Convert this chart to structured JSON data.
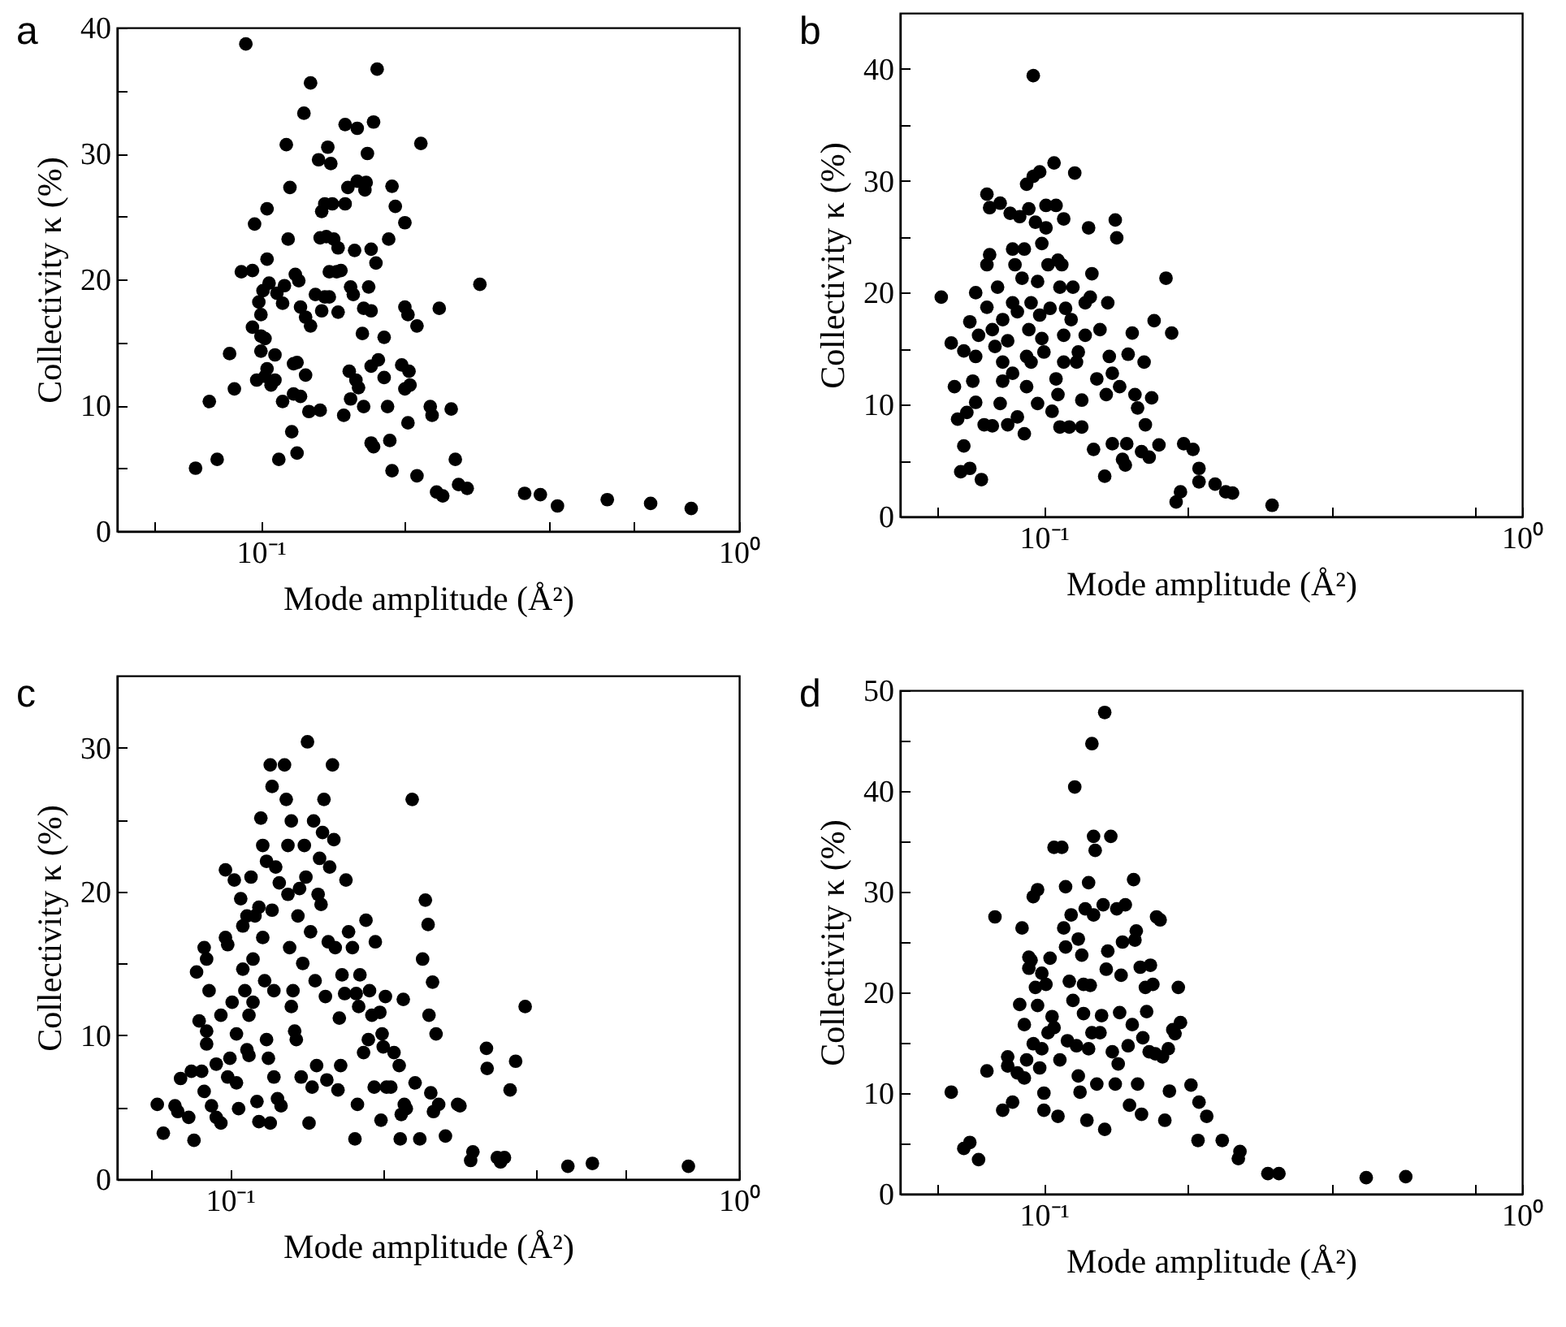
{
  "chart_data": [
    {
      "type": "scatter",
      "title": "a",
      "xlabel": "Mode amplitude (Å²)",
      "ylabel": "Collectivity κ (%)",
      "log": "x",
      "marker": "circle",
      "color": "#000000",
      "xlim": [
        0.05,
        1
      ],
      "ylim": [
        0,
        40
      ],
      "xticks": [
        {
          "value": 0.06,
          "label": null
        },
        {
          "value": 0.1,
          "label": "10⁻¹"
        },
        {
          "value": 0.2,
          "label": null
        },
        {
          "value": 0.4,
          "label": null
        },
        {
          "value": 0.6,
          "label": null
        },
        {
          "value": 1,
          "label": "10⁰"
        }
      ],
      "yticks": [
        0,
        {
          "value": 5,
          "label": null
        },
        10,
        {
          "value": 15,
          "label": null
        },
        20,
        {
          "value": 25,
          "label": null
        },
        30,
        {
          "value": 35,
          "label": null
        },
        40
      ],
      "x": [
        0.073,
        0.078,
        0.081,
        0.086,
        0.088,
        0.093,
        0.097,
        0.091,
        0.096,
        0.096,
        0.099,
        0.1,
        0.101,
        0.1,
        0.102,
        0.1,
        0.098,
        0.103,
        0.102,
        0.105,
        0.107,
        0.107,
        0.103,
        0.103,
        0.104,
        0.108,
        0.111,
        0.111,
        0.109,
        0.113,
        0.114,
        0.112,
        0.115,
        0.116,
        0.117,
        0.119,
        0.117,
        0.121,
        0.119,
        0.118,
        0.12,
        0.123,
        0.127,
        0.121,
        0.124,
        0.127,
        0.124,
        0.126,
        0.133,
        0.13,
        0.134,
        0.136,
        0.139,
        0.132,
        0.138,
        0.14,
        0.134,
        0.136,
        0.141,
        0.133,
        0.137,
        0.142,
        0.145,
        0.139,
        0.144,
        0.147,
        0.145,
        0.15,
        0.159,
        0.152,
        0.159,
        0.166,
        0.165,
        0.15,
        0.157,
        0.154,
        0.156,
        0.153,
        0.158,
        0.16,
        0.154,
        0.149,
        0.164,
        0.163,
        0.164,
        0.17,
        0.167,
        0.172,
        0.175,
        0.17,
        0.174,
        0.168,
        0.17,
        0.176,
        0.17,
        0.172,
        0.181,
        0.181,
        0.184,
        0.186,
        0.188,
        0.188,
        0.191,
        0.185,
        0.2,
        0.197,
        0.204,
        0.2,
        0.205,
        0.2,
        0.203,
        0.212,
        0.203,
        0.212,
        0.216,
        0.236,
        0.226,
        0.228,
        0.25,
        0.255,
        0.259,
        0.27,
        0.233,
        0.24,
        0.287,
        0.356,
        0.384,
        0.417,
        0.53,
        0.653,
        0.794
      ],
      "values": [
        5.0,
        10.3,
        5.7,
        14.1,
        11.3,
        38.7,
        24.4,
        20.6,
        20.7,
        16.2,
        18.2,
        17.2,
        19.1,
        15.5,
        15.3,
        14.3,
        12.0,
        12.9,
        12.3,
        11.6,
        12.0,
        14.0,
        25.6,
        21.6,
        19.7,
        18.9,
        18.1,
        10.3,
        5.7,
        30.7,
        23.2,
        19.5,
        27.3,
        7.9,
        13.3,
        13.4,
        10.9,
        10.7,
        6.2,
        20.4,
        19.9,
        33.2,
        35.6,
        17.8,
        17.0,
        16.3,
        12.4,
        9.5,
        9.6,
        18.8,
        17.5,
        18.6,
        18.6,
        29.5,
        30.5,
        29.2,
        25.4,
        26.0,
        26.0,
        23.3,
        23.4,
        23.2,
        22.5,
        20.6,
        20.6,
        20.7,
        17.4,
        32.3,
        32.0,
        27.3,
        27.8,
        27.7,
        27.1,
        26.0,
        22.3,
        19.4,
        18.8,
        12.7,
        12.0,
        11.4,
        10.5,
        9.2,
        9.9,
        15.7,
        17.7,
        17.5,
        30.0,
        32.5,
        36.7,
        22.4,
        21.3,
        19.4,
        13.1,
        13.6,
        7.0,
        6.7,
        15.4,
        12.2,
        9.9,
        7.2,
        4.8,
        27.4,
        25.8,
        23.2,
        24.5,
        13.2,
        12.7,
        11.3,
        11.6,
        17.8,
        17.2,
        16.3,
        8.6,
        4.4,
        30.8,
        17.7,
        9.9,
        9.2,
        9.7,
        5.7,
        3.7,
        3.4,
        3.1,
        2.8,
        19.6,
        3.0,
        2.9,
        2.0,
        2.5,
        2.2,
        1.8
      ]
    },
    {
      "type": "scatter",
      "title": "b",
      "xlabel": "Mode amplitude (Å²)",
      "ylabel": "Collectivity κ (%)",
      "log": "x",
      "marker": "circle",
      "color": "#000000",
      "xlim": [
        0.05,
        1
      ],
      "ylim": [
        0,
        45
      ],
      "xticks": [
        {
          "value": 0.06,
          "label": null
        },
        {
          "value": 0.1,
          "label": "10⁻¹"
        },
        {
          "value": 0.2,
          "label": null
        },
        {
          "value": 0.4,
          "label": null
        },
        {
          "value": 0.8,
          "label": null
        },
        {
          "value": 1,
          "label": "10⁰"
        }
      ],
      "yticks": [
        0,
        {
          "value": 5,
          "label": null
        },
        10,
        {
          "value": 15,
          "label": null
        },
        20,
        {
          "value": 25,
          "label": null
        },
        30,
        {
          "value": 35,
          "label": null
        },
        40
      ],
      "x": [
        0.061,
        0.064,
        0.065,
        0.066,
        0.067,
        0.068,
        0.068,
        0.069,
        0.07,
        0.074,
        0.07,
        0.071,
        0.072,
        0.072,
        0.072,
        0.073,
        0.075,
        0.076,
        0.076,
        0.077,
        0.077,
        0.076,
        0.078,
        0.078,
        0.079,
        0.08,
        0.081,
        0.081,
        0.082,
        0.082,
        0.082,
        0.084,
        0.084,
        0.085,
        0.086,
        0.086,
        0.086,
        0.087,
        0.088,
        0.088,
        0.089,
        0.09,
        0.091,
        0.091,
        0.092,
        0.092,
        0.092,
        0.093,
        0.093,
        0.094,
        0.094,
        0.095,
        0.095,
        0.096,
        0.097,
        0.097,
        0.098,
        0.098,
        0.099,
        0.099,
        0.1,
        0.101,
        0.101,
        0.102,
        0.103,
        0.104,
        0.105,
        0.106,
        0.106,
        0.107,
        0.107,
        0.108,
        0.108,
        0.109,
        0.11,
        0.11,
        0.11,
        0.111,
        0.113,
        0.114,
        0.115,
        0.116,
        0.117,
        0.118,
        0.12,
        0.12,
        0.122,
        0.122,
        0.124,
        0.125,
        0.126,
        0.127,
        0.129,
        0.131,
        0.134,
        0.135,
        0.136,
        0.137,
        0.139,
        0.139,
        0.141,
        0.142,
        0.144,
        0.146,
        0.148,
        0.15,
        0.149,
        0.153,
        0.155,
        0.157,
        0.16,
        0.162,
        0.163,
        0.166,
        0.168,
        0.17,
        0.174,
        0.18,
        0.185,
        0.189,
        0.193,
        0.196,
        0.205,
        0.211,
        0.211,
        0.228,
        0.24,
        0.248,
        0.3
      ],
      "values": [
        19.6,
        15.5,
        11.6,
        8.7,
        4.0,
        14.8,
        6.3,
        9.3,
        4.3,
        3.3,
        17.4,
        12.1,
        10.2,
        20.0,
        14.3,
        16.2,
        8.2,
        18.7,
        28.8,
        27.6,
        23.4,
        22.5,
        16.7,
        8.1,
        15.2,
        20.5,
        28.0,
        10.1,
        13.8,
        17.6,
        12.1,
        15.7,
        8.2,
        27.1,
        23.9,
        19.1,
        12.8,
        22.5,
        8.9,
        18.3,
        26.8,
        21.3,
        7.4,
        23.9,
        29.7,
        11.6,
        14.3,
        27.5,
        16.7,
        19.1,
        13.8,
        39.4,
        30.4,
        26.3,
        21.0,
        10.1,
        30.8,
        18.0,
        24.4,
        15.9,
        14.7,
        27.8,
        25.8,
        22.5,
        18.6,
        9.4,
        31.6,
        27.8,
        12.3,
        22.9,
        10.9,
        20.5,
        8.0,
        22.5,
        26.6,
        16.2,
        13.8,
        18.6,
        8.0,
        17.6,
        20.5,
        30.7,
        13.8,
        14.7,
        8.0,
        10.4,
        19.1,
        16.2,
        25.8,
        19.6,
        21.7,
        6.0,
        12.3,
        16.7,
        3.6,
        10.9,
        19.1,
        14.3,
        12.8,
        6.5,
        26.5,
        24.9,
        11.6,
        5.1,
        4.6,
        14.5,
        6.5,
        16.4,
        10.9,
        9.7,
        5.8,
        13.8,
        8.2,
        5.3,
        10.6,
        17.5,
        6.4,
        21.3,
        16.4,
        1.3,
        2.2,
        6.5,
        6.0,
        4.3,
        3.1,
        2.9,
        2.2,
        2.1,
        1.0
      ]
    },
    {
      "type": "scatter",
      "title": "c",
      "xlabel": "Mode amplitude (Å²)",
      "ylabel": "Collectivity κ (%)",
      "log": "x",
      "marker": "circle",
      "color": "#000000",
      "xlim": [
        0.06,
        1
      ],
      "ylim": [
        0,
        35
      ],
      "xticks": [
        {
          "value": 0.07,
          "label": null
        },
        {
          "value": 0.1,
          "label": "10⁻¹"
        },
        {
          "value": 0.2,
          "label": null
        },
        {
          "value": 0.4,
          "label": null
        },
        {
          "value": 0.6,
          "label": null
        },
        {
          "value": 1,
          "label": "10⁰"
        }
      ],
      "yticks": [
        0,
        {
          "value": 5,
          "label": null
        },
        10,
        {
          "value": 15,
          "label": null
        },
        20,
        {
          "value": 25,
          "label": null
        },
        30
      ],
      "x": [
        0.072,
        0.074,
        0.078,
        0.079,
        0.083,
        0.08,
        0.084,
        0.088,
        0.085,
        0.086,
        0.089,
        0.09,
        0.087,
        0.09,
        0.091,
        0.089,
        0.09,
        0.092,
        0.094,
        0.096,
        0.094,
        0.096,
        0.098,
        0.098,
        0.099,
        0.099,
        0.1,
        0.101,
        0.102,
        0.103,
        0.103,
        0.104,
        0.105,
        0.106,
        0.106,
        0.107,
        0.108,
        0.108,
        0.109,
        0.109,
        0.11,
        0.111,
        0.111,
        0.112,
        0.113,
        0.114,
        0.114,
        0.115,
        0.116,
        0.116,
        0.117,
        0.118,
        0.118,
        0.119,
        0.12,
        0.12,
        0.121,
        0.121,
        0.122,
        0.122,
        0.123,
        0.124,
        0.125,
        0.126,
        0.128,
        0.129,
        0.13,
        0.13,
        0.131,
        0.132,
        0.133,
        0.134,
        0.135,
        0.132,
        0.136,
        0.137,
        0.138,
        0.139,
        0.14,
        0.141,
        0.142,
        0.143,
        0.144,
        0.145,
        0.146,
        0.147,
        0.148,
        0.149,
        0.15,
        0.151,
        0.152,
        0.153,
        0.154,
        0.155,
        0.156,
        0.157,
        0.159,
        0.16,
        0.161,
        0.163,
        0.164,
        0.165,
        0.166,
        0.168,
        0.169,
        0.171,
        0.174,
        0.176,
        0.177,
        0.178,
        0.179,
        0.18,
        0.183,
        0.185,
        0.187,
        0.188,
        0.19,
        0.192,
        0.193,
        0.197,
        0.198,
        0.199,
        0.2,
        0.202,
        0.203,
        0.207,
        0.21,
        0.215,
        0.216,
        0.217,
        0.219,
        0.22,
        0.222,
        0.228,
        0.231,
        0.236,
        0.239,
        0.242,
        0.245,
        0.246,
        0.248,
        0.25,
        0.251,
        0.254,
        0.257,
        0.265,
        0.28,
        0.283,
        0.297,
        0.3,
        0.319,
        0.32,
        0.335,
        0.34,
        0.346,
        0.355,
        0.364,
        0.38,
        0.461,
        0.515,
        0.795
      ],
      "values": [
        5.2,
        3.2,
        5.1,
        4.7,
        4.3,
        7.0,
        7.5,
        7.5,
        2.7,
        14.4,
        16.1,
        15.3,
        11.0,
        10.3,
        13.1,
        6.1,
        9.4,
        5.1,
        4.3,
        3.9,
        8.0,
        11.4,
        21.5,
        16.8,
        16.3,
        7.1,
        8.4,
        12.3,
        20.8,
        10.1,
        6.7,
        4.9,
        19.5,
        17.6,
        14.6,
        13.1,
        9.0,
        18.3,
        8.6,
        11.4,
        21.0,
        15.3,
        12.3,
        18.3,
        5.4,
        4.0,
        18.9,
        25.1,
        23.2,
        16.8,
        13.8,
        22.1,
        9.7,
        8.4,
        3.9,
        28.8,
        27.3,
        18.7,
        13.1,
        7.1,
        21.7,
        5.6,
        20.6,
        5.1,
        28.8,
        26.4,
        23.2,
        19.8,
        16.1,
        12.0,
        13.1,
        10.3,
        9.7,
        24.9,
        18.3,
        20.2,
        7.1,
        15.0,
        23.2,
        21.0,
        30.4,
        3.9,
        17.2,
        6.4,
        24.9,
        13.8,
        7.9,
        19.8,
        22.3,
        19.1,
        24.1,
        26.4,
        12.7,
        6.9,
        16.5,
        21.7,
        28.8,
        23.6,
        16.1,
        6.2,
        11.2,
        7.9,
        14.2,
        12.9,
        20.8,
        17.2,
        16.1,
        2.8,
        12.9,
        5.2,
        12.0,
        14.2,
        8.8,
        18.0,
        9.7,
        13.1,
        11.4,
        6.4,
        16.5,
        11.6,
        4.1,
        10.1,
        9.2,
        12.7,
        6.4,
        6.4,
        8.8,
        7.9,
        2.8,
        4.5,
        12.5,
        5.2,
        4.9,
        26.4,
        6.7,
        2.8,
        15.3,
        19.4,
        17.7,
        11.4,
        6.0,
        13.7,
        4.7,
        10.1,
        5.2,
        3.0,
        5.2,
        5.1,
        1.3,
        1.9,
        9.1,
        7.7,
        1.5,
        1.2,
        1.5,
        6.2,
        8.2,
        12.0,
        0.9,
        1.1,
        0.9
      ]
    },
    {
      "type": "scatter",
      "title": "d",
      "xlabel": "Mode amplitude (Å²)",
      "ylabel": "Collectivity κ (%)",
      "log": "x",
      "marker": "circle",
      "color": "#000000",
      "xlim": [
        0.05,
        1
      ],
      "ylim": [
        0,
        50
      ],
      "xticks": [
        {
          "value": 0.06,
          "label": null
        },
        {
          "value": 0.1,
          "label": "10⁻¹"
        },
        {
          "value": 0.2,
          "label": null
        },
        {
          "value": 0.4,
          "label": null
        },
        {
          "value": 0.8,
          "label": null
        },
        {
          "value": 1,
          "label": "10⁰"
        }
      ],
      "yticks": [
        0,
        {
          "value": 5,
          "label": null
        },
        10,
        {
          "value": 15,
          "label": null
        },
        20,
        {
          "value": 25,
          "label": null
        },
        30,
        {
          "value": 35,
          "label": null
        },
        40,
        {
          "value": 45,
          "label": null
        },
        50
      ],
      "x": [
        0.064,
        0.068,
        0.07,
        0.073,
        0.076,
        0.079,
        0.082,
        0.084,
        0.084,
        0.086,
        0.088,
        0.089,
        0.09,
        0.091,
        0.091,
        0.092,
        0.093,
        0.093,
        0.094,
        0.095,
        0.097,
        0.095,
        0.096,
        0.097,
        0.098,
        0.099,
        0.099,
        0.1,
        0.1,
        0.101,
        0.102,
        0.103,
        0.104,
        0.105,
        0.105,
        0.107,
        0.108,
        0.109,
        0.11,
        0.111,
        0.111,
        0.112,
        0.113,
        0.114,
        0.115,
        0.116,
        0.117,
        0.118,
        0.118,
        0.119,
        0.12,
        0.121,
        0.121,
        0.122,
        0.123,
        0.124,
        0.124,
        0.125,
        0.126,
        0.126,
        0.127,
        0.127,
        0.128,
        0.129,
        0.131,
        0.132,
        0.133,
        0.134,
        0.134,
        0.135,
        0.136,
        0.138,
        0.139,
        0.141,
        0.142,
        0.143,
        0.144,
        0.145,
        0.146,
        0.148,
        0.15,
        0.151,
        0.153,
        0.154,
        0.155,
        0.156,
        0.157,
        0.159,
        0.16,
        0.161,
        0.163,
        0.164,
        0.166,
        0.167,
        0.169,
        0.171,
        0.172,
        0.175,
        0.177,
        0.179,
        0.182,
        0.183,
        0.186,
        0.188,
        0.191,
        0.193,
        0.203,
        0.211,
        0.21,
        0.219,
        0.236,
        0.255,
        0.257,
        0.294,
        0.31,
        0.472,
        0.571
      ],
      "values": [
        10.1,
        4.5,
        5.1,
        3.4,
        12.2,
        27.5,
        8.3,
        12.7,
        13.6,
        9.1,
        12.0,
        18.8,
        26.4,
        16.8,
        11.5,
        13.3,
        23.5,
        22.4,
        23.2,
        29.5,
        30.2,
        14.9,
        20.5,
        18.7,
        12.5,
        14.4,
        21.9,
        10.0,
        8.3,
        20.8,
        16.0,
        23.4,
        17.6,
        34.4,
        16.5,
        7.7,
        13.3,
        34.4,
        26.4,
        30.5,
        24.5,
        15.2,
        21.1,
        27.7,
        19.2,
        40.4,
        14.7,
        25.3,
        11.7,
        10.1,
        23.7,
        17.9,
        20.8,
        28.3,
        7.3,
        30.9,
        14.4,
        20.7,
        16.0,
        44.7,
        27.7,
        35.5,
        34.1,
        10.9,
        16.0,
        17.7,
        28.7,
        47.8,
        6.4,
        22.3,
        24.1,
        35.5,
        14.1,
        10.9,
        28.3,
        12.9,
        18.0,
        21.7,
        25.0,
        28.7,
        14.7,
        8.8,
        16.8,
        31.2,
        25.2,
        26.1,
        10.9,
        22.5,
        7.9,
        15.5,
        20.5,
        18.1,
        14.1,
        22.7,
        20.8,
        13.9,
        27.5,
        27.2,
        13.6,
        7.3,
        14.4,
        10.2,
        16.3,
        15.9,
        20.5,
        17.0,
        10.8,
        9.1,
        5.3,
        7.7,
        5.3,
        3.5,
        4.2,
        2.0,
        2.0,
        1.6,
        1.7
      ]
    }
  ]
}
